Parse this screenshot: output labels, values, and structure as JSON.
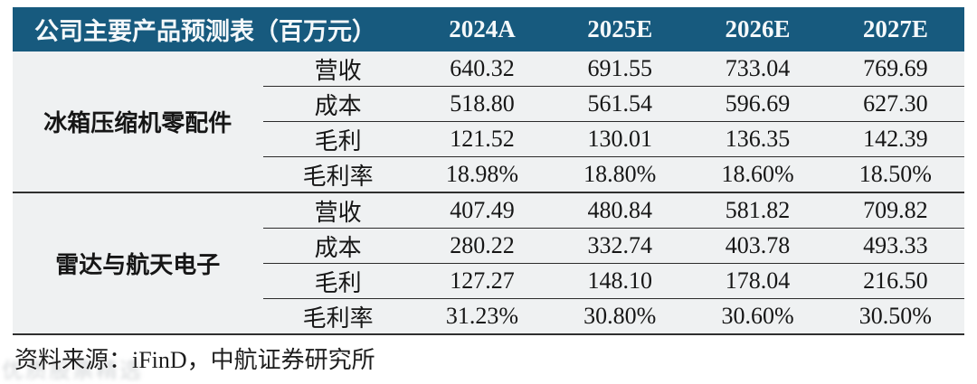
{
  "chart_data": {
    "type": "table",
    "title": "公司主要产品预测表（百万元）",
    "columns": [
      "2024A",
      "2025E",
      "2026E",
      "2027E"
    ],
    "groups": [
      {
        "name": "冰箱压缩机零配件",
        "rows": [
          {
            "metric": "营收",
            "values": [
              "640.32",
              "691.55",
              "733.04",
              "769.69"
            ]
          },
          {
            "metric": "成本",
            "values": [
              "518.80",
              "561.54",
              "596.69",
              "627.30"
            ]
          },
          {
            "metric": "毛利",
            "values": [
              "121.52",
              "130.01",
              "136.35",
              "142.39"
            ]
          },
          {
            "metric": "毛利率",
            "values": [
              "18.98%",
              "18.80%",
              "18.60%",
              "18.50%"
            ]
          }
        ]
      },
      {
        "name": "雷达与航天电子",
        "rows": [
          {
            "metric": "营收",
            "values": [
              "407.49",
              "480.84",
              "581.82",
              "709.82"
            ]
          },
          {
            "metric": "成本",
            "values": [
              "280.22",
              "332.74",
              "403.78",
              "493.33"
            ]
          },
          {
            "metric": "毛利",
            "values": [
              "127.27",
              "148.10",
              "178.04",
              "216.50"
            ]
          },
          {
            "metric": "毛利率",
            "values": [
              "31.23%",
              "30.80%",
              "30.60%",
              "30.50%"
            ]
          }
        ]
      }
    ]
  },
  "footer": {
    "source": "资料来源：iFinD，中航证券研究所"
  },
  "watermark": {
    "text": "优质股票精选"
  },
  "colors": {
    "header_bg": "#175a7e",
    "header_text": "#f4f8fa",
    "body_bg": "#eff1f2",
    "body_text": "#161616",
    "rule": "#2f2f2f"
  }
}
